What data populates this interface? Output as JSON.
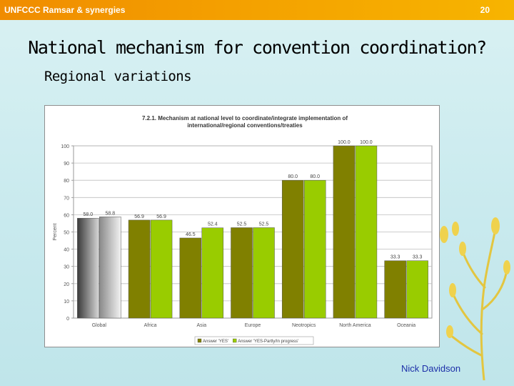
{
  "header": {
    "title": "UNFCCC Ramsar & synergies",
    "page_number": "20"
  },
  "headline": "National mechanism for convention coordination?",
  "subheadline": "Regional variations",
  "footer": {
    "author": "Nick Davidson"
  },
  "colors": {
    "topbar": "#f4a000",
    "series_yes": "#808000",
    "series_yes_partly": "#99cc00",
    "author_text": "#1c2fa8"
  },
  "chart_data": {
    "type": "bar",
    "title": "7.2.1. Mechanism at national level to coordinate/integrate implementation of international/regional conventions/treaties",
    "ylabel": "Percent",
    "xlabel": "",
    "ylim": [
      0,
      100
    ],
    "yticks": [
      0,
      10,
      20,
      30,
      40,
      50,
      60,
      70,
      80,
      90,
      100
    ],
    "grid": true,
    "categories": [
      "Global",
      "Africa",
      "Asia",
      "Europe",
      "Neotropics",
      "North America",
      "Oceania"
    ],
    "series": [
      {
        "name": "Answer 'YES'",
        "color": "#808000",
        "values": [
          58.0,
          56.9,
          46.5,
          52.5,
          80.0,
          100.0,
          33.3
        ]
      },
      {
        "name": "Answer 'YES-Partly/In progress'",
        "color": "#99cc00",
        "values": [
          58.8,
          56.9,
          52.4,
          52.5,
          80.0,
          100.0,
          33.3
        ]
      }
    ],
    "legend_position": "bottom",
    "data_labels": true
  }
}
